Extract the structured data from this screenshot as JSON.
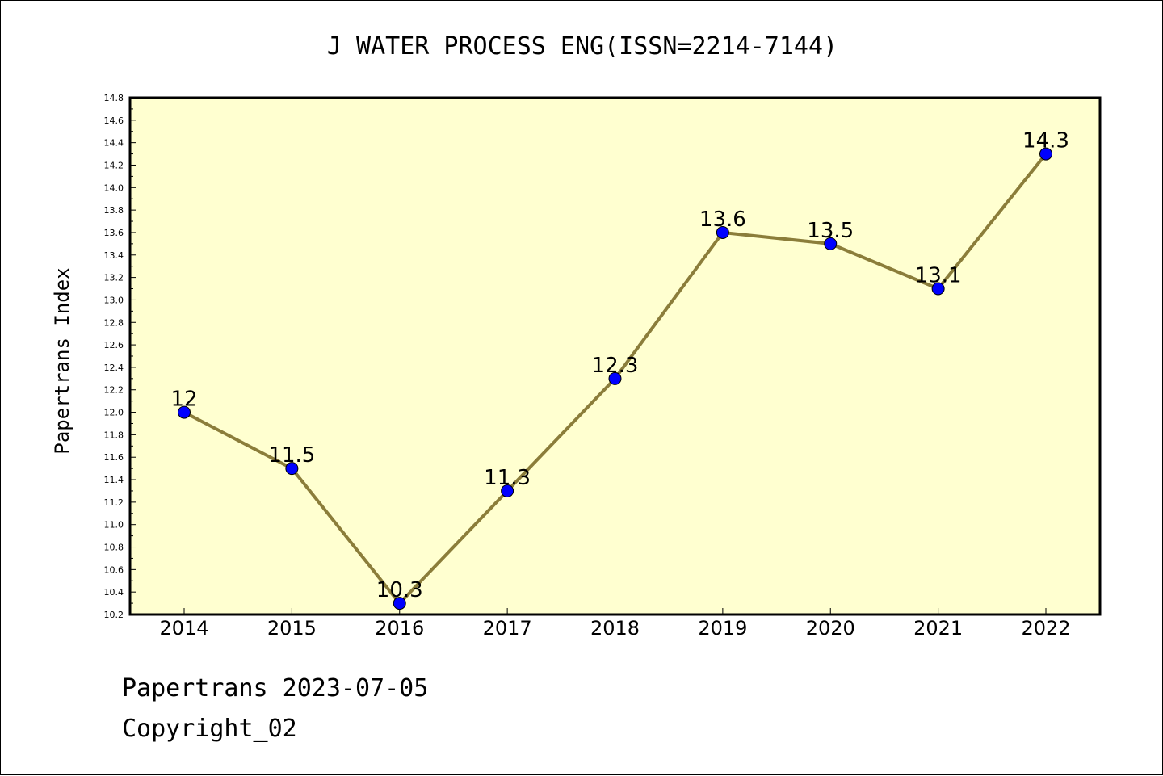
{
  "chart_data": {
    "type": "line",
    "title": "J WATER PROCESS ENG(ISSN=2214-7144)",
    "xlabel": "",
    "ylabel": "Papertrans Index",
    "categories": [
      "2014",
      "2015",
      "2016",
      "2017",
      "2018",
      "2019",
      "2020",
      "2021",
      "2022"
    ],
    "series": [
      {
        "values": [
          12,
          11.5,
          10.3,
          11.3,
          12.3,
          13.6,
          13.5,
          13.1,
          14.3
        ],
        "data_labels": [
          "12",
          "11.5",
          "10.3",
          "11.3",
          "12.3",
          "13.6",
          "13.5",
          "13.1",
          "14.3"
        ],
        "line_color": "#8b7d3a",
        "marker_color": "#0000ff"
      }
    ],
    "ylim": [
      10.2,
      14.8
    ],
    "yticks": [
      "10.2",
      "10.4",
      "10.6",
      "10.8",
      "11.0",
      "11.2",
      "11.4",
      "11.6",
      "11.8",
      "12.0",
      "12.2",
      "12.4",
      "12.6",
      "12.8",
      "13.0",
      "13.2",
      "13.4",
      "13.6",
      "13.8",
      "14.0",
      "14.2",
      "14.4",
      "14.6",
      "14.8"
    ],
    "plot_background": "#ffffd0",
    "grid": false,
    "legend": "none"
  },
  "footer": {
    "line1": "Papertrans 2023-07-05",
    "line2": "Copyright_02"
  }
}
